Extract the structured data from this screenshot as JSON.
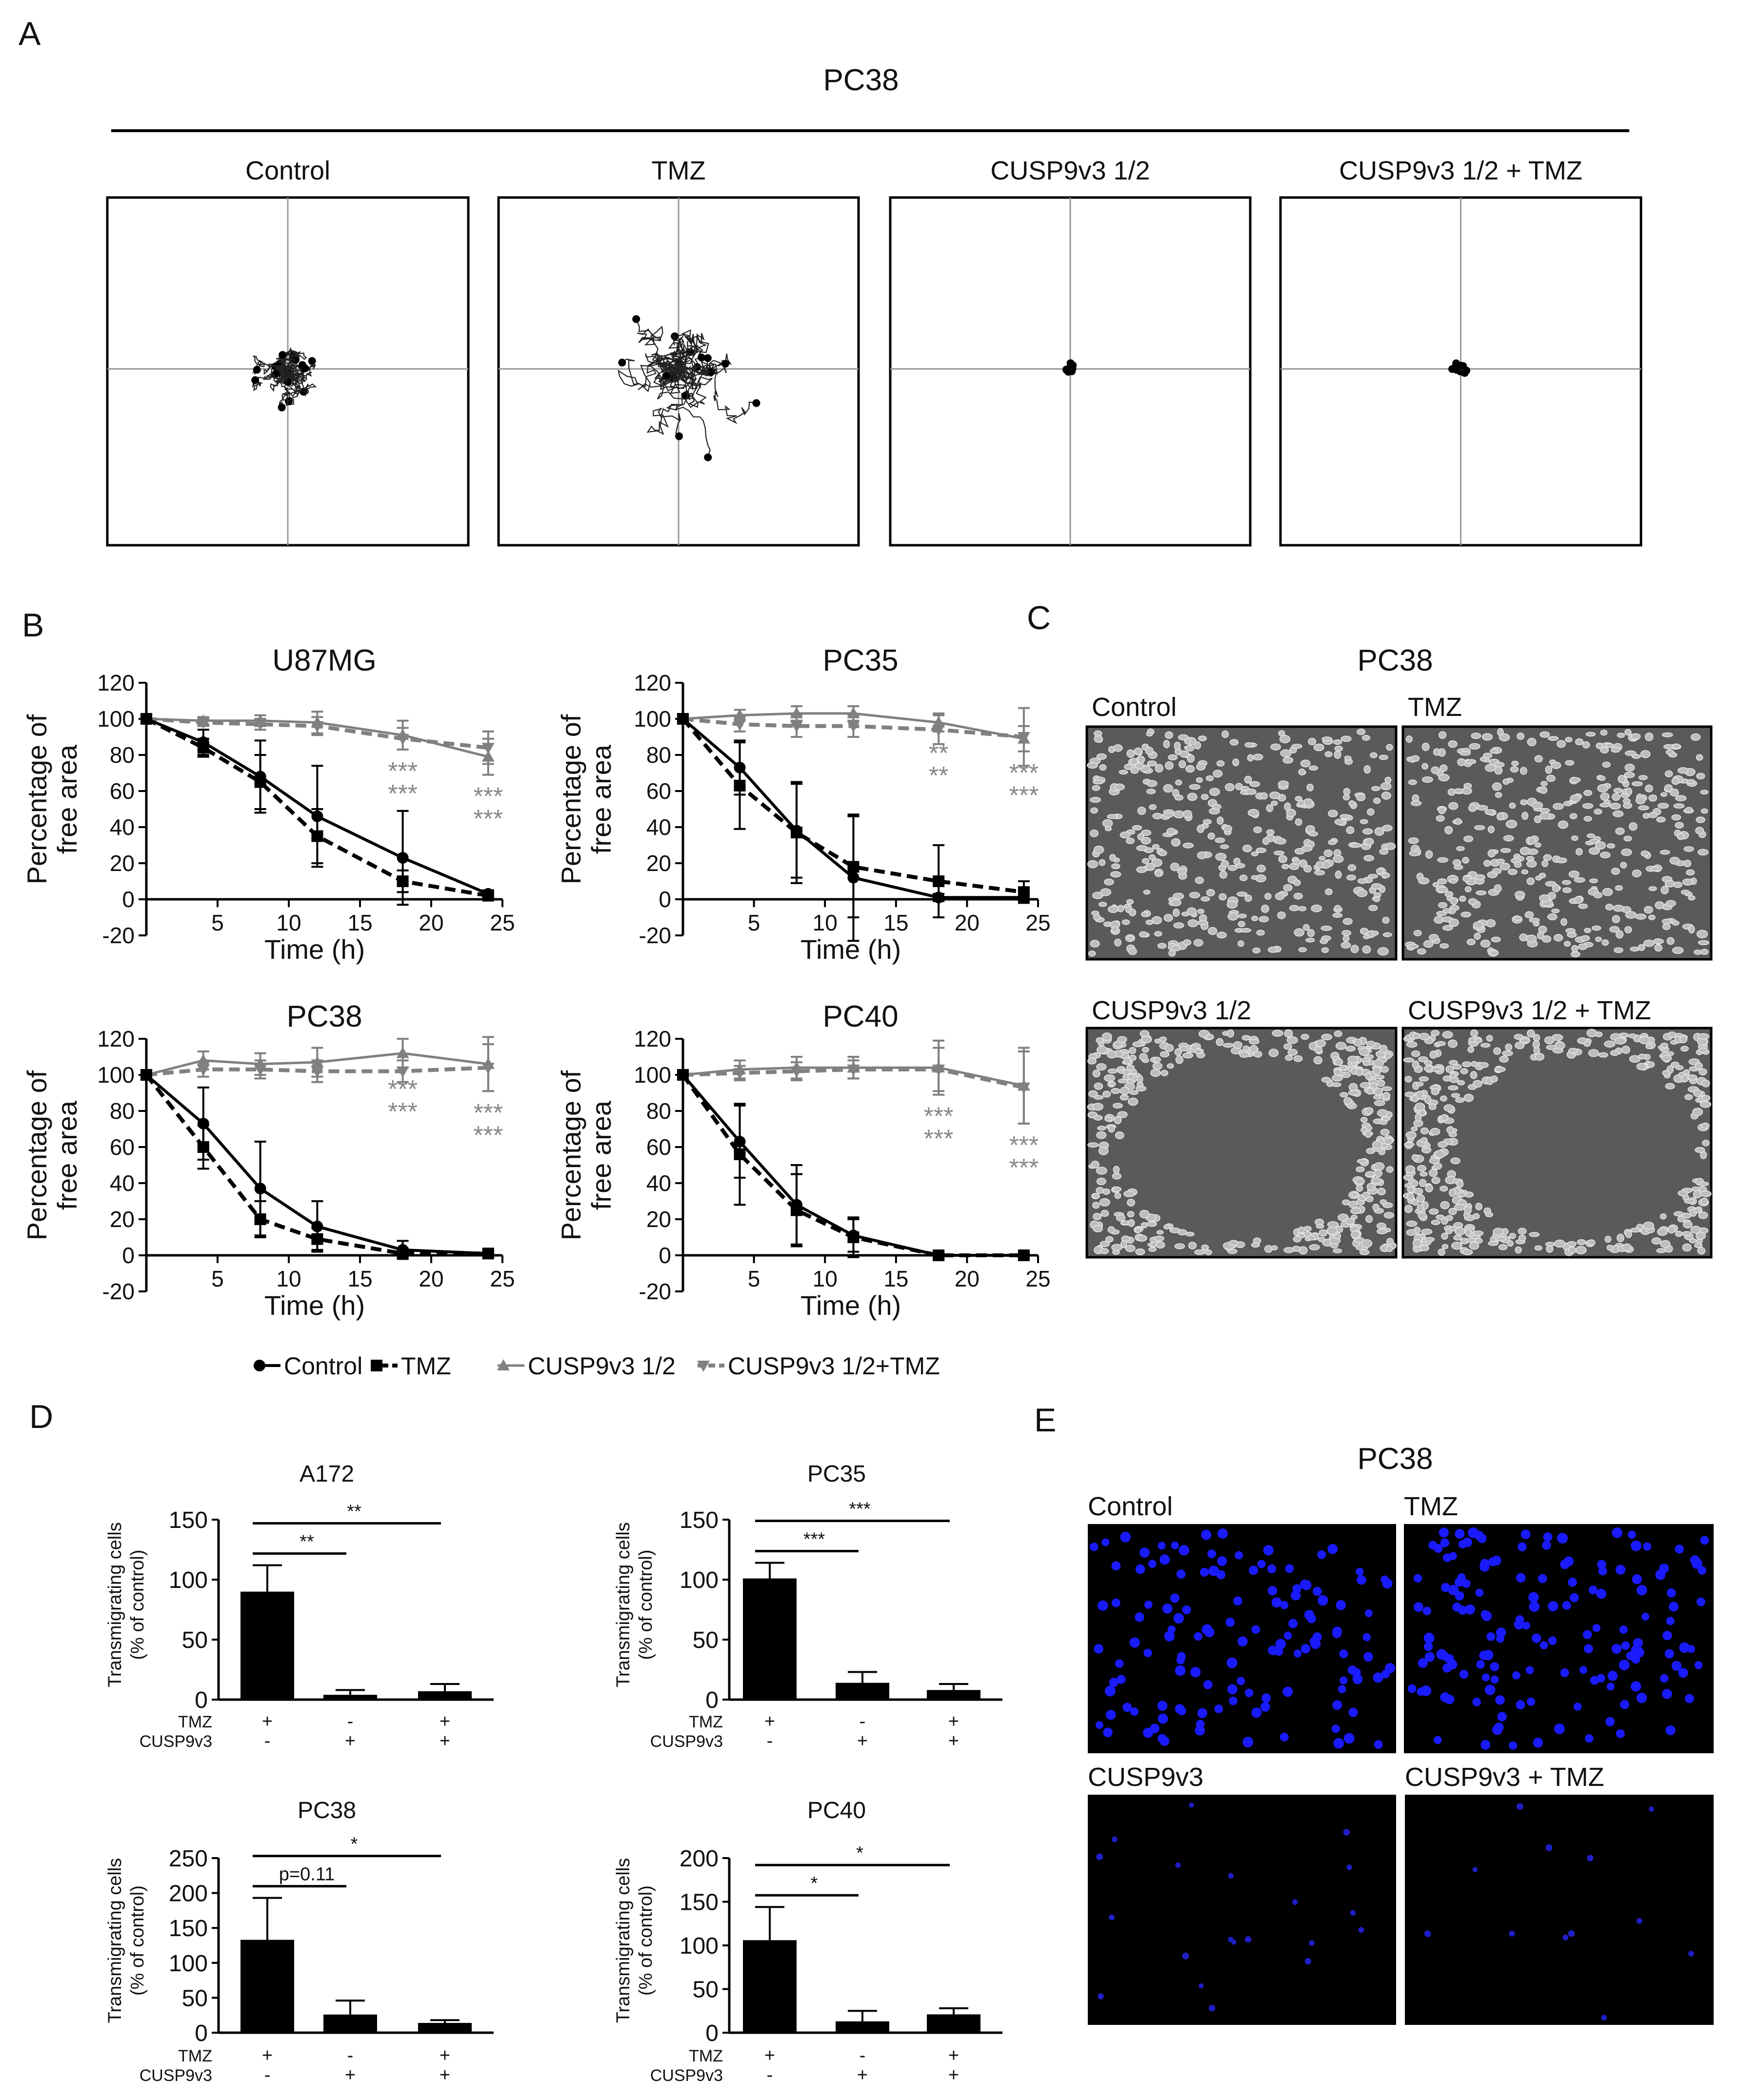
{
  "panel_letters": {
    "A": "A",
    "B": "B",
    "C": "C",
    "D": "D",
    "E": "E"
  },
  "panel_a": {
    "title": "PC38",
    "boxes": [
      {
        "label": "Control",
        "spread": 1.0,
        "seed": 11
      },
      {
        "label": "TMZ",
        "spread": 1.8,
        "seed": 27
      },
      {
        "label": "CUSP9v3 1/2",
        "spread": 0.12,
        "seed": 5
      },
      {
        "label": "CUSP9v3 1/2 + TMZ",
        "spread": 0.15,
        "seed": 9
      }
    ]
  },
  "panel_c": {
    "title": "PC38",
    "images": [
      {
        "label": "Control",
        "gap": 0
      },
      {
        "label": "TMZ",
        "gap": 0.1
      },
      {
        "label": "CUSP9v3 1/2",
        "gap": 1
      },
      {
        "label": "CUSP9v3 1/2 + TMZ",
        "gap": 1
      }
    ]
  },
  "panel_e": {
    "title": "PC38",
    "images": [
      {
        "label": "Control",
        "nuclei": 130
      },
      {
        "label": "TMZ",
        "nuclei": 150
      },
      {
        "label": "CUSP9v3",
        "nuclei": 20
      },
      {
        "label": "CUSP9v3 + TMZ",
        "nuclei": 12
      }
    ]
  },
  "legend_b": [
    "Control",
    "TMZ",
    "CUSP9v3  1/2",
    "CUSP9v3  1/2+TMZ"
  ],
  "colors": {
    "black": "#000000",
    "gray": "#808080"
  },
  "chart_data": [
    {
      "type": "line",
      "title": "U87MG",
      "xlabel": "Time (h)",
      "ylabel": "Percentage of free area",
      "xlim": [
        0,
        25
      ],
      "ylim": [
        -20,
        120
      ],
      "xticks": [
        5,
        10,
        15,
        20,
        25
      ],
      "yticks": [
        -20,
        0,
        20,
        40,
        60,
        80,
        100,
        120
      ],
      "x": [
        0,
        4,
        8,
        12,
        18,
        24
      ],
      "series": [
        {
          "name": "Control",
          "values": [
            100,
            87,
            68,
            46,
            23,
            3
          ],
          "err": [
            0,
            7,
            20,
            28,
            26,
            2
          ]
        },
        {
          "name": "TMZ",
          "values": [
            100,
            84,
            65,
            35,
            10,
            2
          ],
          "err": [
            0,
            5,
            15,
            15,
            6,
            1
          ]
        },
        {
          "name": "CUSP9v3  1/2",
          "values": [
            100,
            99,
            99,
            98,
            91,
            79
          ],
          "err": [
            0,
            2,
            3,
            6,
            8,
            10
          ]
        },
        {
          "name": "CUSP9v3  1/2+TMZ",
          "values": [
            100,
            98,
            97,
            96,
            89,
            84
          ],
          "err": [
            0,
            2,
            3,
            5,
            6,
            9
          ]
        }
      ],
      "annotations": [
        {
          "x": 18,
          "lines": [
            "***",
            "***"
          ]
        },
        {
          "x": 24,
          "lines": [
            "***",
            "***"
          ]
        }
      ]
    },
    {
      "type": "line",
      "title": "PC35",
      "xlabel": "Time (h)",
      "ylabel": "Percentage of free area",
      "xlim": [
        0,
        25
      ],
      "ylim": [
        -20,
        120
      ],
      "xticks": [
        5,
        10,
        15,
        20,
        25
      ],
      "yticks": [
        -20,
        0,
        20,
        40,
        60,
        80,
        100,
        120
      ],
      "x": [
        0,
        4,
        8,
        12,
        18,
        24
      ],
      "series": [
        {
          "name": "Control",
          "values": [
            100,
            73,
            38,
            12,
            1,
            1
          ],
          "err": [
            0,
            15,
            26,
            35,
            2,
            2
          ]
        },
        {
          "name": "TMZ",
          "values": [
            100,
            63,
            37,
            18,
            10,
            4
          ],
          "err": [
            0,
            24,
            28,
            28,
            20,
            6
          ]
        },
        {
          "name": "CUSP9v3  1/2",
          "values": [
            100,
            102,
            103,
            103,
            98,
            89
          ],
          "err": [
            0,
            3,
            4,
            4,
            5,
            7
          ]
        },
        {
          "name": "CUSP9v3  1/2+TMZ",
          "values": [
            100,
            97,
            96,
            96,
            94,
            90
          ],
          "err": [
            0,
            4,
            6,
            6,
            8,
            16
          ]
        }
      ],
      "annotations": [
        {
          "x": 18,
          "lines": [
            "**",
            "**"
          ]
        },
        {
          "x": 24,
          "lines": [
            "***",
            "***"
          ]
        }
      ]
    },
    {
      "type": "line",
      "title": "PC38",
      "xlabel": "Time (h)",
      "ylabel": "Percentage of free area",
      "xlim": [
        0,
        25
      ],
      "ylim": [
        -20,
        120
      ],
      "xticks": [
        5,
        10,
        15,
        20,
        25
      ],
      "yticks": [
        -20,
        0,
        20,
        40,
        60,
        80,
        100,
        120
      ],
      "x": [
        0,
        4,
        8,
        12,
        18,
        24
      ],
      "series": [
        {
          "name": "Control",
          "values": [
            100,
            73,
            37,
            16,
            3,
            1
          ],
          "err": [
            0,
            20,
            26,
            14,
            5,
            2
          ]
        },
        {
          "name": "TMZ",
          "values": [
            100,
            60,
            20,
            9,
            1,
            1
          ],
          "err": [
            0,
            12,
            10,
            6,
            2,
            1
          ]
        },
        {
          "name": "CUSP9v3  1/2",
          "values": [
            100,
            108,
            106,
            107,
            112,
            106
          ],
          "err": [
            0,
            5,
            6,
            8,
            8,
            15
          ]
        },
        {
          "name": "CUSP9v3  1/2+TMZ",
          "values": [
            100,
            103,
            103,
            102,
            102,
            104
          ],
          "err": [
            0,
            4,
            5,
            6,
            6,
            13
          ]
        }
      ],
      "annotations": [
        {
          "x": 18,
          "lines": [
            "***",
            "***"
          ]
        },
        {
          "x": 24,
          "lines": [
            "***",
            "***"
          ]
        }
      ]
    },
    {
      "type": "line",
      "title": "PC40",
      "xlabel": "Time (h)",
      "ylabel": "Percentage of free area",
      "xlim": [
        0,
        25
      ],
      "ylim": [
        -20,
        120
      ],
      "xticks": [
        5,
        10,
        15,
        20,
        25
      ],
      "yticks": [
        -20,
        0,
        20,
        40,
        60,
        80,
        100,
        120
      ],
      "x": [
        0,
        4,
        8,
        12,
        18,
        24
      ],
      "series": [
        {
          "name": "Control",
          "values": [
            100,
            63,
            28,
            11,
            0,
            0
          ],
          "err": [
            0,
            20,
            22,
            9,
            1,
            1
          ]
        },
        {
          "name": "TMZ",
          "values": [
            100,
            56,
            25,
            10,
            0,
            0
          ],
          "err": [
            0,
            28,
            20,
            11,
            1,
            1
          ]
        },
        {
          "name": "CUSP9v3  1/2",
          "values": [
            100,
            103,
            104,
            104,
            104,
            94
          ],
          "err": [
            0,
            5,
            6,
            6,
            15,
            21
          ]
        },
        {
          "name": "CUSP9v3  1/2+TMZ",
          "values": [
            100,
            101,
            102,
            103,
            103,
            93
          ],
          "err": [
            0,
            4,
            5,
            5,
            12,
            20
          ]
        }
      ],
      "annotations": [
        {
          "x": 18,
          "lines": [
            "***",
            "***"
          ]
        },
        {
          "x": 24,
          "lines": [
            "***",
            "***"
          ]
        }
      ]
    },
    {
      "type": "bar",
      "title": "A172",
      "ylabel": "Transmigrating cells (% of control)",
      "ylim": [
        0,
        150
      ],
      "yticks": [
        0,
        50,
        100,
        150
      ],
      "values": [
        90,
        4,
        7
      ],
      "err": [
        22,
        4,
        6
      ],
      "rows": [
        {
          "label": "TMZ",
          "signs": [
            "+",
            "-",
            "+"
          ]
        },
        {
          "label": "CUSP9v3",
          "signs": [
            "-",
            "+",
            "+"
          ]
        }
      ],
      "brackets": [
        {
          "to": 1,
          "label": "**"
        },
        {
          "to": 2,
          "label": "**"
        }
      ]
    },
    {
      "type": "bar",
      "title": "PC35",
      "ylabel": "Transmigrating cells (% of control)",
      "ylim": [
        0,
        150
      ],
      "yticks": [
        0,
        50,
        100,
        150
      ],
      "values": [
        101,
        14,
        8
      ],
      "err": [
        13,
        9,
        5
      ],
      "rows": [
        {
          "label": "TMZ",
          "signs": [
            "+",
            "-",
            "+"
          ]
        },
        {
          "label": "CUSP9v3",
          "signs": [
            "-",
            "+",
            "+"
          ]
        }
      ],
      "brackets": [
        {
          "to": 1,
          "label": "***"
        },
        {
          "to": 2,
          "label": "***"
        }
      ]
    },
    {
      "type": "bar",
      "title": "PC38",
      "ylabel": "Transmigrating cells (% of control)",
      "ylim": [
        0,
        250
      ],
      "yticks": [
        0,
        50,
        100,
        150,
        200,
        250
      ],
      "values": [
        133,
        26,
        14
      ],
      "err": [
        60,
        20,
        4
      ],
      "rows": [
        {
          "label": "TMZ",
          "signs": [
            "+",
            "-",
            "+"
          ]
        },
        {
          "label": "CUSP9v3",
          "signs": [
            "-",
            "+",
            "+"
          ]
        }
      ],
      "brackets": [
        {
          "to": 1,
          "label": "p=0.11"
        },
        {
          "to": 2,
          "label": "*"
        }
      ]
    },
    {
      "type": "bar",
      "title": "PC40",
      "ylabel": "Transmigrating cells (% of control)",
      "ylim": [
        0,
        200
      ],
      "yticks": [
        0,
        50,
        100,
        150,
        200
      ],
      "values": [
        106,
        13,
        21
      ],
      "err": [
        38,
        12,
        7
      ],
      "rows": [
        {
          "label": "TMZ",
          "signs": [
            "+",
            "-",
            "+"
          ]
        },
        {
          "label": "CUSP9v3",
          "signs": [
            "-",
            "+",
            "+"
          ]
        }
      ],
      "brackets": [
        {
          "to": 1,
          "label": "*"
        },
        {
          "to": 2,
          "label": "*"
        }
      ]
    }
  ]
}
